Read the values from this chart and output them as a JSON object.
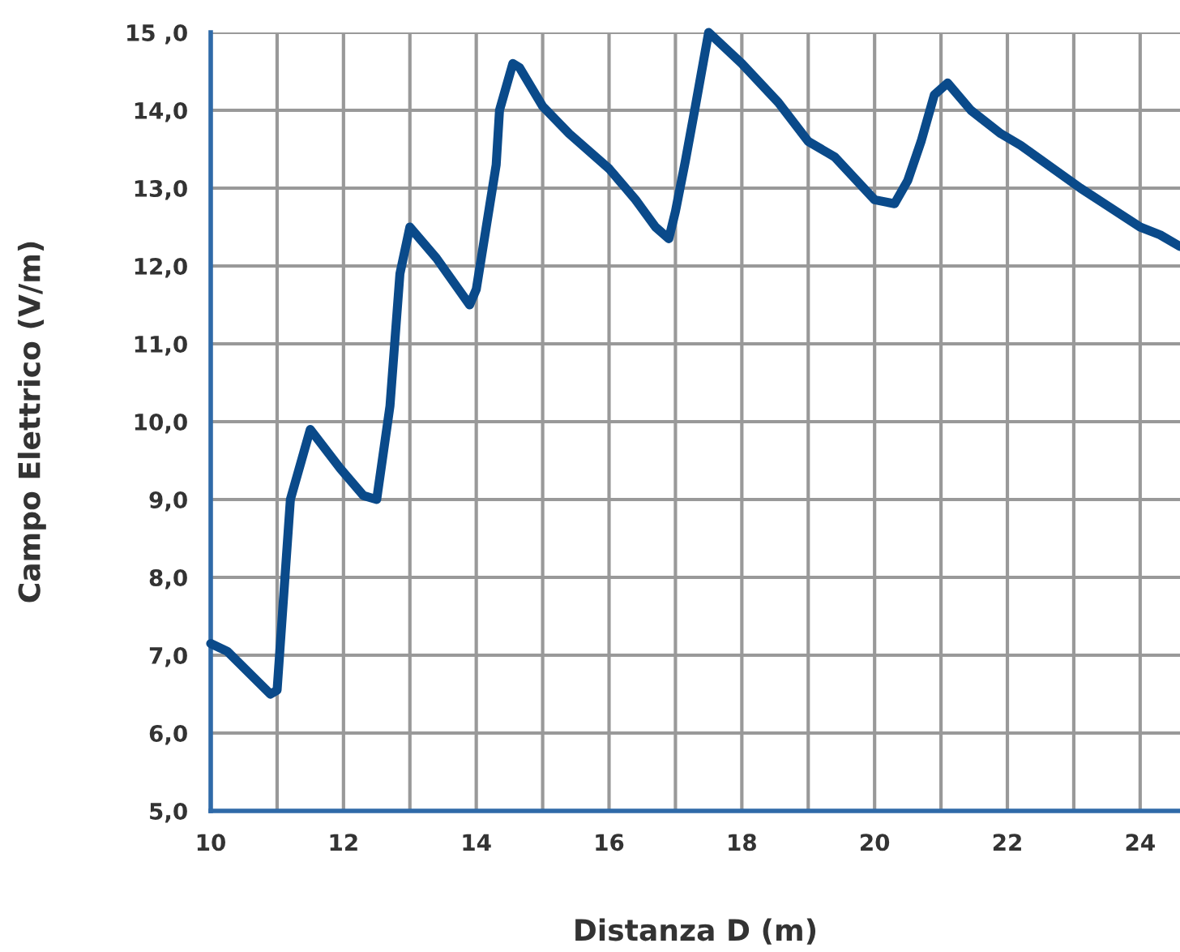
{
  "chart_data": {
    "type": "line",
    "xlabel": "Distanza D (m)",
    "ylabel": "Campo Elettrico (V/m)",
    "x": [
      10,
      10.25,
      10.9,
      11.0,
      11.2,
      11.5,
      11.95,
      12.3,
      12.5,
      12.7,
      12.85,
      13.0,
      13.4,
      13.9,
      14.0,
      14.3,
      14.35,
      14.55,
      14.65,
      15.0,
      15.4,
      16.0,
      16.4,
      16.7,
      16.9,
      17.0,
      17.15,
      17.3,
      17.5,
      18.0,
      18.55,
      19.0,
      19.4,
      20.0,
      20.3,
      20.5,
      20.7,
      20.9,
      21.1,
      21.45,
      21.9,
      22.2,
      23.1,
      24.0,
      24.3,
      24.6
    ],
    "series": [
      {
        "color": "#0a4a8a",
        "values": [
          7.15,
          7.05,
          6.5,
          6.55,
          9.0,
          9.9,
          9.4,
          9.05,
          9.0,
          10.2,
          11.9,
          12.5,
          12.1,
          11.5,
          11.7,
          13.3,
          14.0,
          14.6,
          14.55,
          14.05,
          13.7,
          13.25,
          12.85,
          12.5,
          12.35,
          12.7,
          13.35,
          14.05,
          15.0,
          14.6,
          14.1,
          13.6,
          13.4,
          12.85,
          12.8,
          13.1,
          13.6,
          14.2,
          14.35,
          14.0,
          13.7,
          13.55,
          13.0,
          12.5,
          12.4,
          12.25
        ]
      }
    ],
    "xlim": [
      10,
      24.6
    ],
    "ylim": [
      5,
      15
    ],
    "xticks": [
      10,
      {
        "value": 11,
        "label": null
      },
      12,
      {
        "value": 13,
        "label": null
      },
      14,
      {
        "value": 15,
        "label": null
      },
      16,
      {
        "value": 17,
        "label": null
      },
      18,
      {
        "value": 19,
        "label": null
      },
      20,
      {
        "value": 21,
        "label": null
      },
      22,
      {
        "value": 23,
        "label": null
      },
      24
    ],
    "yticks": [
      {
        "value": 5,
        "label": "5,0"
      },
      {
        "value": 6,
        "label": "6,0"
      },
      {
        "value": 7,
        "label": "7,0"
      },
      {
        "value": 8,
        "label": "8,0"
      },
      {
        "value": 9,
        "label": "9,0"
      },
      {
        "value": 10,
        "label": "10,0"
      },
      {
        "value": 11,
        "label": "11,0"
      },
      {
        "value": 12,
        "label": "12,0"
      },
      {
        "value": 13,
        "label": "13,0"
      },
      {
        "value": 14,
        "label": "14,0"
      },
      {
        "value": 15,
        "label": "15 ,0"
      }
    ],
    "grid": true,
    "marker": "none",
    "line_style": "solid"
  }
}
